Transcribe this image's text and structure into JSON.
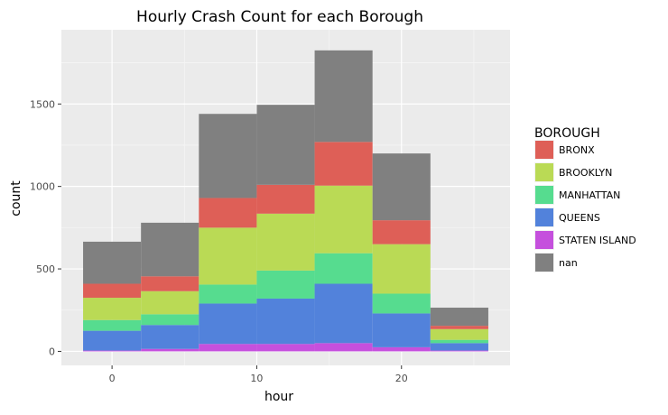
{
  "chart_data": {
    "type": "bar",
    "stacked": true,
    "histogram": true,
    "title": "Hourly Crash Count for each Borough",
    "xlabel": "hour",
    "ylabel": "count",
    "xlim": [
      -3.5,
      27.5
    ],
    "ylim": [
      -85,
      1950
    ],
    "x_ticks": [
      0,
      10,
      20
    ],
    "y_ticks": [
      0,
      500,
      1000,
      1500
    ],
    "grid": true,
    "legend_position": "right",
    "legend_title": "BOROUGH",
    "bins": [
      {
        "x0": -2,
        "x1": 2
      },
      {
        "x0": 2,
        "x1": 6
      },
      {
        "x0": 6,
        "x1": 10
      },
      {
        "x0": 10,
        "x1": 14
      },
      {
        "x0": 14,
        "x1": 18
      },
      {
        "x0": 18,
        "x1": 22
      },
      {
        "x0": 22,
        "x1": 26
      }
    ],
    "series": [
      {
        "name": "STATEN ISLAND",
        "color": "#c550dd",
        "values": [
          5,
          15,
          45,
          45,
          50,
          25,
          5
        ]
      },
      {
        "name": "QUEENS",
        "color": "#5282db",
        "values": [
          120,
          145,
          245,
          275,
          360,
          205,
          45
        ]
      },
      {
        "name": "MANHATTAN",
        "color": "#56dc8f",
        "values": [
          65,
          65,
          115,
          170,
          185,
          120,
          20
        ]
      },
      {
        "name": "BROOKLYN",
        "color": "#bada55",
        "values": [
          135,
          140,
          345,
          345,
          410,
          300,
          65
        ]
      },
      {
        "name": "BRONX",
        "color": "#de5f57",
        "values": [
          85,
          90,
          180,
          175,
          265,
          145,
          20
        ]
      },
      {
        "name": "nan",
        "color": "#808080",
        "values": [
          255,
          325,
          510,
          485,
          555,
          405,
          110
        ]
      }
    ],
    "legend_order": [
      "BRONX",
      "BROOKLYN",
      "MANHATTAN",
      "QUEENS",
      "STATEN ISLAND",
      "nan"
    ]
  }
}
